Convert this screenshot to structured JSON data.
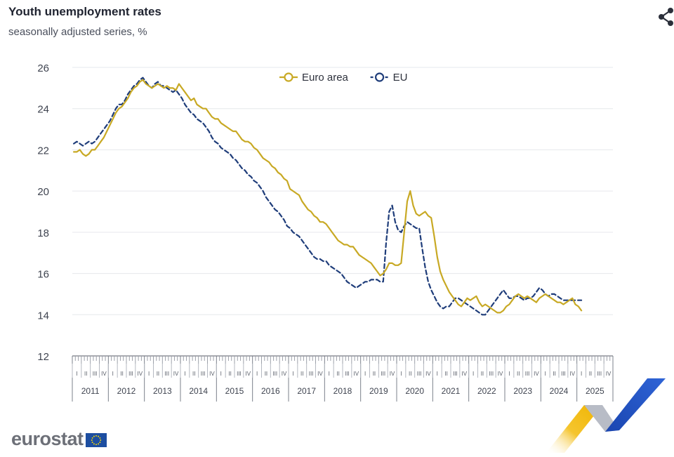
{
  "title": "Youth unemployment rates",
  "subtitle": "seasonally adjusted series, %",
  "brand": "eurostat",
  "icons": {
    "share": "share-icon",
    "flag": "eu-flag-icon"
  },
  "chart_data": {
    "type": "line",
    "title": "Youth unemployment rates",
    "subtitle": "seasonally adjusted series, %",
    "ylim": [
      12,
      26
    ],
    "yticks": [
      12,
      14,
      16,
      18,
      20,
      22,
      24,
      26
    ],
    "grid": true,
    "legend": "top-center",
    "x_start": "2011-01",
    "x_frequency": "monthly",
    "years": [
      "2011",
      "2012",
      "2013",
      "2014",
      "2015",
      "2016",
      "2017",
      "2018",
      "2019",
      "2020",
      "2021",
      "2022",
      "2023",
      "2024",
      "2025"
    ],
    "quarters": [
      "I",
      "II",
      "III",
      "IV"
    ],
    "series": [
      {
        "name": "Euro area",
        "color": "#c8a924",
        "dashed": false,
        "values": [
          21.9,
          21.9,
          22.0,
          21.8,
          21.7,
          21.8,
          22.0,
          22.0,
          22.2,
          22.4,
          22.6,
          22.9,
          23.2,
          23.5,
          23.8,
          24.0,
          24.1,
          24.3,
          24.5,
          24.8,
          25.0,
          25.1,
          25.3,
          25.4,
          25.2,
          25.1,
          25.0,
          25.1,
          25.2,
          25.1,
          25.0,
          25.1,
          25.0,
          25.0,
          24.9,
          25.2,
          25.0,
          24.8,
          24.6,
          24.4,
          24.5,
          24.2,
          24.1,
          24.0,
          24.0,
          23.8,
          23.6,
          23.5,
          23.5,
          23.3,
          23.2,
          23.1,
          23.0,
          22.9,
          22.9,
          22.7,
          22.5,
          22.4,
          22.4,
          22.3,
          22.1,
          22.0,
          21.8,
          21.6,
          21.5,
          21.4,
          21.2,
          21.1,
          20.9,
          20.8,
          20.6,
          20.5,
          20.1,
          20.0,
          19.9,
          19.8,
          19.5,
          19.3,
          19.1,
          19.0,
          18.8,
          18.7,
          18.5,
          18.5,
          18.4,
          18.2,
          18.0,
          17.8,
          17.6,
          17.5,
          17.4,
          17.4,
          17.3,
          17.3,
          17.1,
          16.9,
          16.8,
          16.7,
          16.6,
          16.5,
          16.3,
          16.1,
          15.9,
          16.0,
          16.2,
          16.5,
          16.5,
          16.4,
          16.4,
          16.5,
          18.0,
          19.5,
          20.0,
          19.3,
          18.9,
          18.8,
          18.9,
          19.0,
          18.8,
          18.7,
          17.8,
          16.8,
          16.1,
          15.7,
          15.4,
          15.1,
          14.9,
          14.7,
          14.5,
          14.4,
          14.6,
          14.8,
          14.7,
          14.8,
          14.9,
          14.6,
          14.4,
          14.5,
          14.4,
          14.3,
          14.2,
          14.1,
          14.1,
          14.2,
          14.4,
          14.5,
          14.7,
          14.9,
          15.0,
          14.9,
          14.8,
          14.9,
          14.8,
          14.7,
          14.6,
          14.8,
          14.9,
          15.0,
          14.9,
          14.8,
          14.7,
          14.6,
          14.6,
          14.5,
          14.6,
          14.7,
          14.8,
          14.5,
          14.4,
          14.2
        ]
      },
      {
        "name": "EU",
        "color": "#1f3d7a",
        "dashed": true,
        "values": [
          22.3,
          22.4,
          22.3,
          22.2,
          22.3,
          22.4,
          22.3,
          22.4,
          22.6,
          22.8,
          23.0,
          23.2,
          23.4,
          23.7,
          24.0,
          24.2,
          24.2,
          24.4,
          24.7,
          24.9,
          25.1,
          25.2,
          25.4,
          25.5,
          25.3,
          25.1,
          25.0,
          25.2,
          25.3,
          25.1,
          25.1,
          25.0,
          24.9,
          24.8,
          24.9,
          24.7,
          24.5,
          24.2,
          24.0,
          23.8,
          23.7,
          23.5,
          23.4,
          23.3,
          23.1,
          22.9,
          22.6,
          22.4,
          22.3,
          22.1,
          22.0,
          21.9,
          21.8,
          21.6,
          21.5,
          21.3,
          21.1,
          21.0,
          20.8,
          20.7,
          20.5,
          20.4,
          20.2,
          20.0,
          19.7,
          19.5,
          19.3,
          19.1,
          19.0,
          18.8,
          18.6,
          18.3,
          18.2,
          18.0,
          17.9,
          17.8,
          17.6,
          17.4,
          17.2,
          17.0,
          16.8,
          16.7,
          16.7,
          16.6,
          16.6,
          16.4,
          16.3,
          16.2,
          16.1,
          16.0,
          15.8,
          15.6,
          15.5,
          15.4,
          15.3,
          15.4,
          15.5,
          15.6,
          15.6,
          15.7,
          15.7,
          15.7,
          15.6,
          15.6,
          17.5,
          19.0,
          19.3,
          18.5,
          18.1,
          18.0,
          18.3,
          18.5,
          18.4,
          18.3,
          18.2,
          18.2,
          17.2,
          16.3,
          15.6,
          15.2,
          14.9,
          14.6,
          14.4,
          14.3,
          14.4,
          14.4,
          14.6,
          14.8,
          14.8,
          14.7,
          14.6,
          14.5,
          14.4,
          14.3,
          14.2,
          14.1,
          14.0,
          14.0,
          14.2,
          14.4,
          14.6,
          14.8,
          15.0,
          15.2,
          15.0,
          14.8,
          14.8,
          14.9,
          14.9,
          14.8,
          14.7,
          14.8,
          14.8,
          14.9,
          15.1,
          15.3,
          15.2,
          15.0,
          14.9,
          15.0,
          15.0,
          14.9,
          14.8,
          14.7,
          14.7,
          14.7,
          14.7,
          14.7,
          14.7,
          14.7
        ]
      }
    ]
  }
}
